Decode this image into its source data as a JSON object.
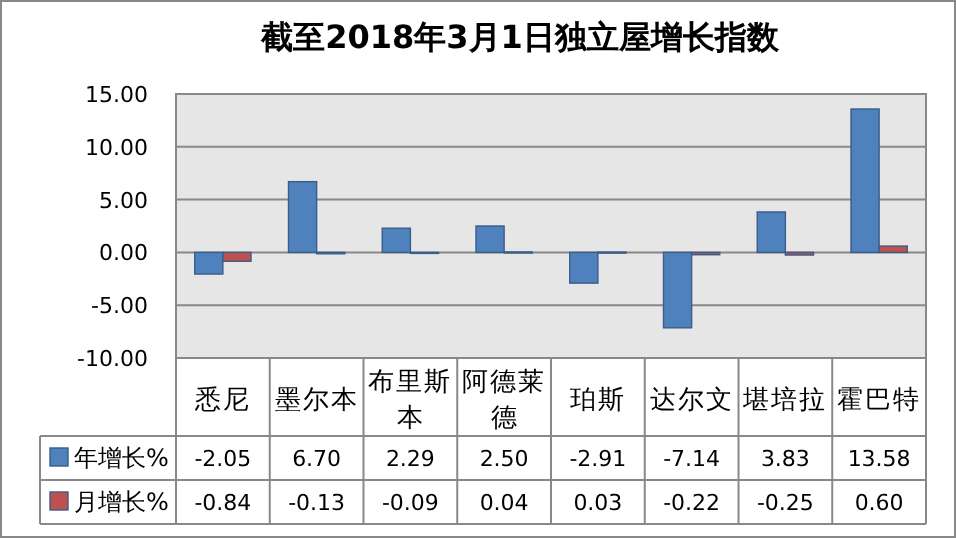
{
  "chart_data": {
    "type": "bar",
    "title": "截至2018年3月1日独立屋增长指数",
    "categories": [
      "悉尼",
      "墨尔本",
      "布里斯本",
      "阿德莱德",
      "珀斯",
      "达尔文",
      "堪培拉",
      "霍巴特"
    ],
    "series": [
      {
        "name": "年增长%",
        "color": "#4f81bd",
        "values": [
          -2.05,
          6.7,
          2.29,
          2.5,
          -2.91,
          -7.14,
          3.83,
          13.58
        ],
        "value_labels": [
          "-2.05",
          "6.70",
          "2.29",
          "2.50",
          "-2.91",
          "-7.14",
          "3.83",
          "13.58"
        ]
      },
      {
        "name": "月增长%",
        "color": "#c0504d",
        "values": [
          -0.84,
          -0.13,
          -0.09,
          0.04,
          0.03,
          -0.22,
          -0.25,
          0.6
        ],
        "value_labels": [
          "-0.84",
          "-0.13",
          "-0.09",
          "0.04",
          "0.03",
          "-0.22",
          "-0.25",
          "0.60"
        ]
      }
    ],
    "ylim": [
      -10,
      15
    ],
    "yticks": [
      {
        "value": -10,
        "label": "-10.00"
      },
      {
        "value": -5,
        "label": "-5.00"
      },
      {
        "value": 0,
        "label": "0.00"
      },
      {
        "value": 5,
        "label": "5.00"
      },
      {
        "value": 10,
        "label": "10.00"
      },
      {
        "value": 15,
        "label": "15.00"
      }
    ],
    "grid": "y",
    "legend": "bottom"
  }
}
